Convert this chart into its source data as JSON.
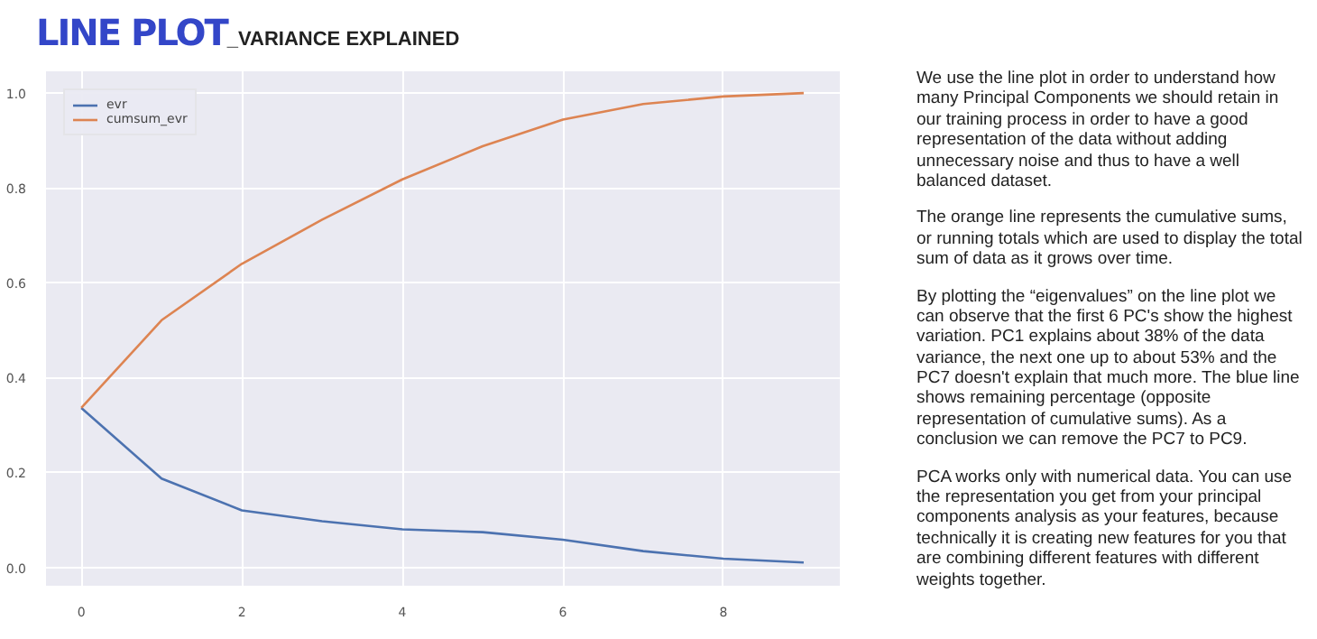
{
  "chart_data": {
    "type": "line",
    "title": "LINE PLOT",
    "subtitle": "_VARIANCE EXPLAINED",
    "x": [
      0,
      1,
      2,
      3,
      4,
      5,
      6,
      7,
      8,
      9
    ],
    "series": [
      {
        "name": "evr",
        "color": "#4c72b0",
        "values": [
          0.336,
          0.187,
          0.12,
          0.097,
          0.08,
          0.074,
          0.058,
          0.034,
          0.018,
          0.01
        ]
      },
      {
        "name": "cumsum_evr",
        "color": "#dd8452",
        "values": [
          0.336,
          0.521,
          0.64,
          0.733,
          0.818,
          0.888,
          0.944,
          0.977,
          0.993,
          1.0
        ]
      }
    ],
    "xlim": [
      -0.44,
      9.45
    ],
    "ylim": [
      -0.039,
      1.046
    ],
    "xticks": [
      0,
      2,
      4,
      6,
      8
    ],
    "yticks": [
      {
        "value": 0,
        "label": "0.0"
      },
      {
        "value": 0.2,
        "label": "0.2"
      },
      {
        "value": 0.4,
        "label": "0.4"
      },
      {
        "value": 0.6,
        "label": "0.6"
      },
      {
        "value": 0.8,
        "label": "0.8"
      },
      {
        "value": 1.0,
        "label": "1.0"
      }
    ],
    "grid": true,
    "legend": "top left",
    "marker": "none",
    "line_style": "solid",
    "annotations": [
      "We use the line plot in order to understand how many Principal Components we should retain in our training process in order to have a good representation of the data without adding unnecessary noise and thus to have a well balanced dataset.",
      "The orange line represents the cumulative sums, or running totals which are used to display the total sum of data as it grows over time.",
      "By plotting the “eigenvalues” on the line plot we can observe that the first 6 PC's show the highest variation. PC1 explains about 38% of the data variance, the next one up to about 53% and the PC7 doesn't explain that much more. The blue line shows remaining percentage (opposite representation of cumulative sums). As a conclusion we can remove the PC7 to PC9.",
      "PCA works only with numerical data. You can use the representation you get from your principal components analysis as your features, because technically it is creating new features for you that are combining different features with different weights together."
    ]
  }
}
